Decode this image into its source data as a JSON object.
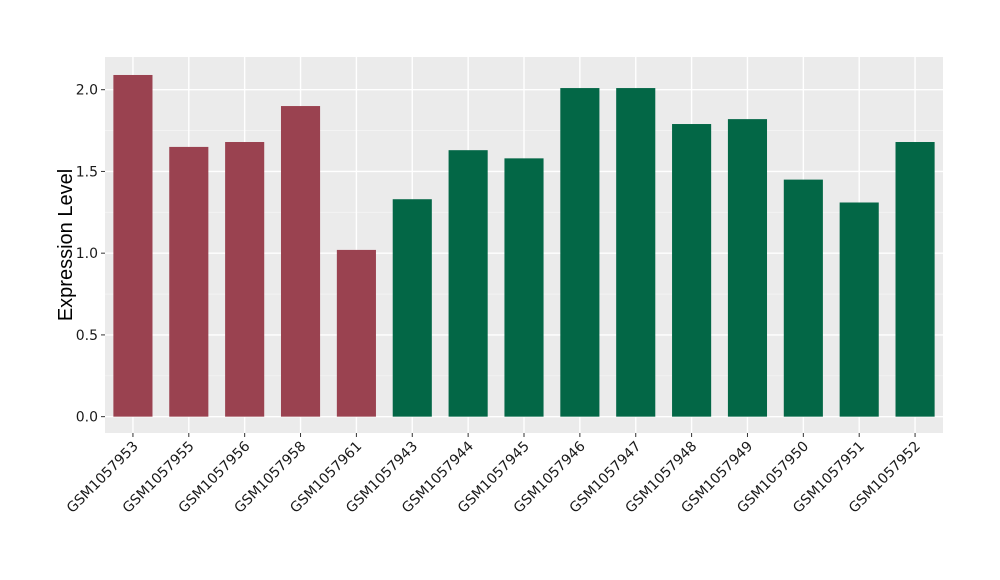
{
  "chart_data": {
    "type": "bar",
    "ylabel": "Expression Level",
    "xlabel": "",
    "ylim": [
      -0.1,
      2.2
    ],
    "yticks": [
      0.0,
      0.5,
      1.0,
      1.5,
      2.0
    ],
    "ytick_labels": [
      "0.0",
      "0.5",
      "1.0",
      "1.5",
      "2.0"
    ],
    "grid": true,
    "background": "#ebebeb",
    "categories": [
      "GSM1057953",
      "GSM1057955",
      "GSM1057956",
      "GSM1057958",
      "GSM1057961",
      "GSM1057943",
      "GSM1057944",
      "GSM1057945",
      "GSM1057946",
      "GSM1057947",
      "GSM1057948",
      "GSM1057949",
      "GSM1057950",
      "GSM1057951",
      "GSM1057952"
    ],
    "values": [
      2.09,
      1.65,
      1.68,
      1.9,
      1.02,
      1.33,
      1.63,
      1.58,
      2.01,
      2.01,
      1.79,
      1.82,
      1.45,
      1.31,
      1.68
    ],
    "groups": [
      "a",
      "a",
      "a",
      "a",
      "a",
      "b",
      "b",
      "b",
      "b",
      "b",
      "b",
      "b",
      "b",
      "b",
      "b"
    ],
    "group_colors": {
      "a": "#9a4250",
      "b": "#036746"
    }
  }
}
